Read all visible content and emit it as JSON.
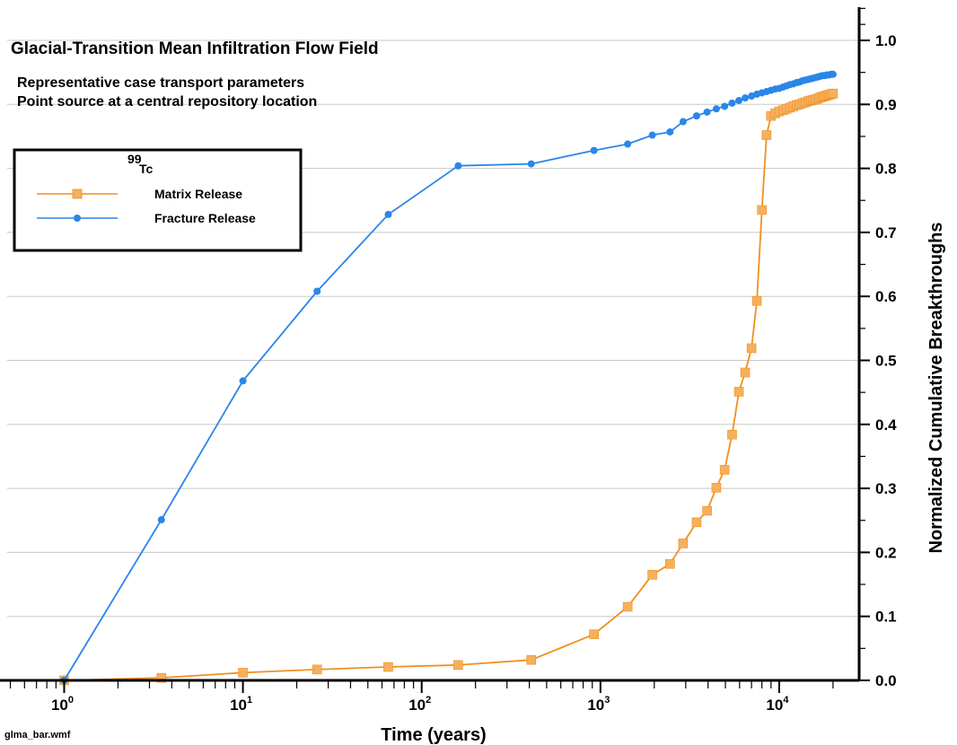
{
  "chart_data": {
    "type": "line",
    "title": "Glacial-Transition Mean Infiltration Flow Field",
    "subtitle_lines": [
      "Representative case transport parameters",
      "Point source at a central repository location"
    ],
    "xlabel": "Time (years)",
    "ylabel": "Normalized Cumulative Breakthroughs",
    "xscale": "log",
    "xlim": [
      0.48,
      28000
    ],
    "ylim": [
      0.0,
      1.0
    ],
    "x_ticks": [
      {
        "value": 1,
        "base": "10",
        "exp": "0"
      },
      {
        "value": 10,
        "base": "10",
        "exp": "1"
      },
      {
        "value": 100,
        "base": "10",
        "exp": "2"
      },
      {
        "value": 1000,
        "base": "10",
        "exp": "3"
      },
      {
        "value": 10000,
        "base": "10",
        "exp": "4"
      }
    ],
    "y_ticks": [
      "0.0",
      "0.1",
      "0.2",
      "0.3",
      "0.4",
      "0.5",
      "0.6",
      "0.7",
      "0.8",
      "0.9",
      "1.0"
    ],
    "y_tick_values": [
      0.0,
      0.1,
      0.2,
      0.3,
      0.4,
      0.5,
      0.6,
      0.7,
      0.8,
      0.9,
      1.0
    ],
    "grid": "horizontal",
    "legend": {
      "placement": "upper-left",
      "title_superscript": "99",
      "title_text": "Tc",
      "entries": [
        "Matrix Release",
        "Fracture Release"
      ]
    },
    "series": [
      {
        "name": "Matrix Release",
        "color": "#F0901E",
        "marker_color": "#F5B05E",
        "marker": "square",
        "x": [
          1,
          3.5,
          10,
          26,
          65,
          160,
          410,
          920,
          1420,
          1950,
          2450,
          2900,
          3450,
          3950,
          4450,
          4950,
          5450,
          5950,
          6450,
          7000,
          7500,
          8000,
          8500,
          9000,
          9500,
          10000,
          10500,
          11000,
          11500,
          12000,
          12500,
          13000,
          13500,
          14000,
          14500,
          15000,
          15500,
          16000,
          16500,
          17000,
          17500,
          18000,
          18500,
          19000,
          19500,
          20000
        ],
        "y": [
          0.0,
          0.004,
          0.012,
          0.017,
          0.021,
          0.024,
          0.032,
          0.072,
          0.115,
          0.165,
          0.182,
          0.214,
          0.247,
          0.265,
          0.301,
          0.329,
          0.384,
          0.451,
          0.481,
          0.519,
          0.593,
          0.735,
          0.852,
          0.882,
          0.886,
          0.889,
          0.891,
          0.893,
          0.895,
          0.897,
          0.899,
          0.9,
          0.902,
          0.903,
          0.905,
          0.906,
          0.907,
          0.908,
          0.909,
          0.911,
          0.912,
          0.913,
          0.914,
          0.915,
          0.916,
          0.917
        ]
      },
      {
        "name": "Fracture Release",
        "color": "#2A86E8",
        "marker_color": "#2A86E8",
        "marker": "circle",
        "x": [
          1,
          3.5,
          10,
          26,
          65,
          160,
          410,
          920,
          1420,
          1950,
          2450,
          2900,
          3450,
          3950,
          4450,
          4950,
          5450,
          5950,
          6450,
          7000,
          7500,
          8000,
          8500,
          9000,
          9500,
          10000,
          10500,
          11000,
          11500,
          12000,
          12500,
          13000,
          13500,
          14000,
          14500,
          15000,
          15500,
          16000,
          16500,
          17000,
          17500,
          18000,
          18500,
          19000,
          19500,
          20000
        ],
        "y": [
          0.0,
          0.251,
          0.468,
          0.608,
          0.728,
          0.804,
          0.807,
          0.828,
          0.838,
          0.852,
          0.857,
          0.873,
          0.882,
          0.888,
          0.893,
          0.897,
          0.902,
          0.906,
          0.91,
          0.913,
          0.916,
          0.918,
          0.92,
          0.922,
          0.924,
          0.925,
          0.927,
          0.929,
          0.931,
          0.932,
          0.934,
          0.935,
          0.937,
          0.938,
          0.939,
          0.94,
          0.941,
          0.942,
          0.943,
          0.944,
          0.945,
          0.945,
          0.946,
          0.946,
          0.947,
          0.947
        ]
      }
    ]
  },
  "footer": {
    "filename": "glma_bar.wmf"
  }
}
